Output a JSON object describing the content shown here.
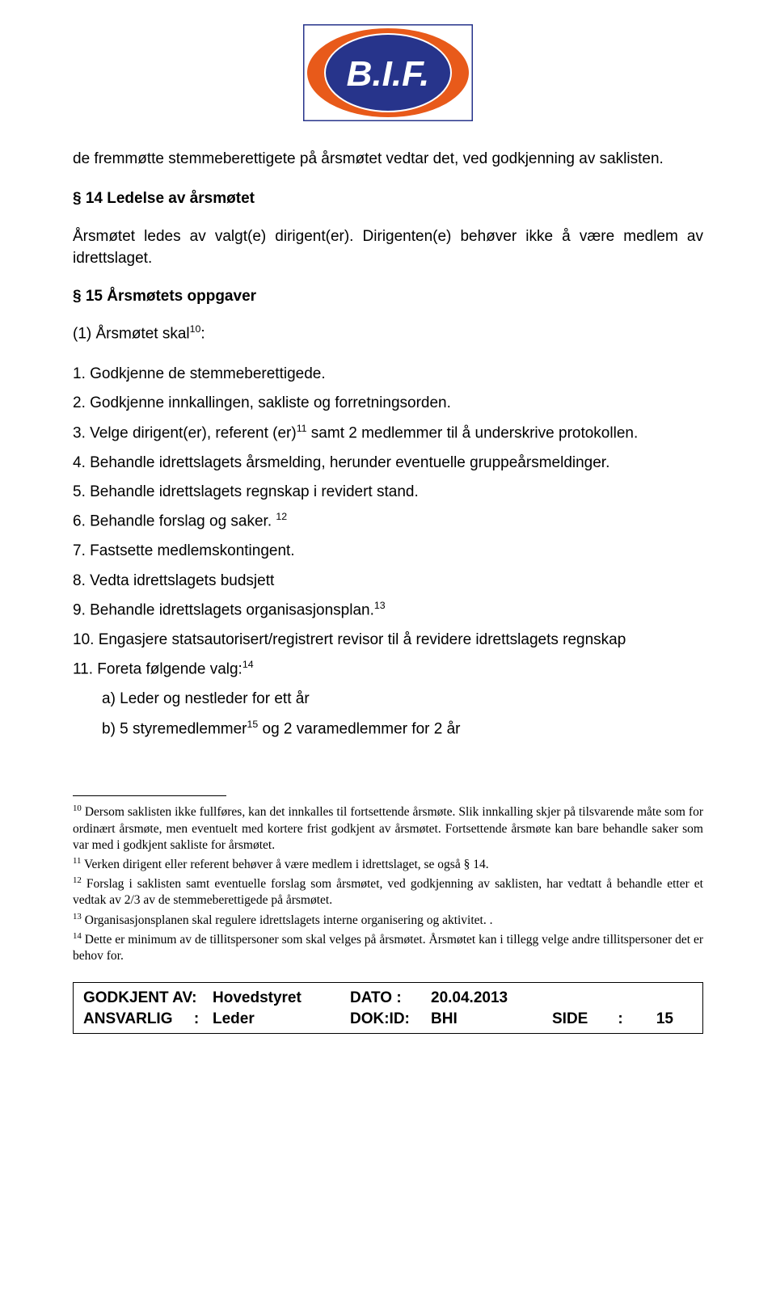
{
  "logo": {
    "text": "B.I.F.",
    "outer_fill": "#e85a1a",
    "inner_fill": "#27348b",
    "text_color": "#ffffff",
    "border_color": "#27348b"
  },
  "intro": "de fremmøtte stemmeberettigete på årsmøtet vedtar det, ved godkjenning av saklisten.",
  "section14": {
    "heading": "§ 14 Ledelse av årsmøtet",
    "text": "Årsmøtet ledes av valgt(e) dirigent(er). Dirigenten(e) behøver ikke å være medlem av idrettslaget."
  },
  "section15": {
    "heading": "§ 15 Årsmøtets oppgaver",
    "lead_pre": "(1) Årsmøtet skal",
    "lead_sup": "10",
    "lead_post": ":",
    "items": [
      {
        "n": "1.",
        "text": "Godkjenne de stemmeberettigede."
      },
      {
        "n": "2.",
        "text": "Godkjenne innkallingen, sakliste og forretningsorden."
      },
      {
        "n": "3.",
        "pre": "Velge dirigent(er), referent (er)",
        "sup": "11",
        "post": " samt 2 medlemmer til å underskrive protokollen."
      },
      {
        "n": "4.",
        "text": "Behandle idrettslagets årsmelding, herunder eventuelle gruppeårsmeldinger."
      },
      {
        "n": "5.",
        "text": "Behandle idrettslagets regnskap i revidert stand."
      },
      {
        "n": "6.",
        "pre": "Behandle forslag og saker. ",
        "sup": "12",
        "post": ""
      },
      {
        "n": "7.",
        "text": "Fastsette medlemskontingent."
      },
      {
        "n": "8.",
        "text": "Vedta idrettslagets budsjett"
      },
      {
        "n": "9.",
        "pre": "Behandle idrettslagets organisasjonsplan.",
        "sup": "13",
        "post": ""
      },
      {
        "n": "10.",
        "text": "Engasjere statsautorisert/registrert revisor til å revidere idrettslagets regnskap"
      },
      {
        "n": "11.",
        "pre": "Foreta følgende valg:",
        "sup": "14",
        "post": ""
      }
    ],
    "sub_a": "a) Leder og nestleder for ett år",
    "sub_b_pre": "b) 5 styremedlemmer",
    "sub_b_sup": "15",
    "sub_b_post": "   og 2 varamedlemmer for 2 år"
  },
  "footnotes": [
    {
      "n": "10",
      "text": "Dersom saklisten ikke fullføres, kan det innkalles til fortsettende årsmøte. Slik innkalling skjer på tilsvarende måte som for ordinært årsmøte, men eventuelt med kortere frist godkjent av årsmøtet. Fortsettende årsmøte kan bare behandle saker som var med i godkjent sakliste for årsmøtet."
    },
    {
      "n": "11",
      "text": "Verken dirigent eller referent behøver å være medlem i idrettslaget, se også § 14."
    },
    {
      "n": "12",
      "text": "Forslag i saklisten samt eventuelle forslag som årsmøtet, ved godkjenning av saklisten, har vedtatt å behandle etter et vedtak av 2/3 av de stemmeberettigede på årsmøtet."
    },
    {
      "n": "13",
      "text": "Organisasjonsplanen skal regulere idrettslagets interne organisering og aktivitet. ."
    },
    {
      "n": "14",
      "text": "Dette er minimum av de tillitspersoner som skal velges på årsmøtet. Årsmøtet kan i tillegg velge andre tillitspersoner det er behov for."
    }
  ],
  "footer": {
    "row1": {
      "label": "GODKJENT AV:",
      "value": "Hovedstyret",
      "date_label": "DATO   :",
      "date_value": "20.04.2013"
    },
    "row2": {
      "label": "ANSVARLIG",
      "colon": ":",
      "value": "Leder",
      "doc_label": "DOK:ID:",
      "doc_value": "BHI",
      "side_label": "SIDE",
      "side_colon": ":",
      "page": "15"
    }
  }
}
